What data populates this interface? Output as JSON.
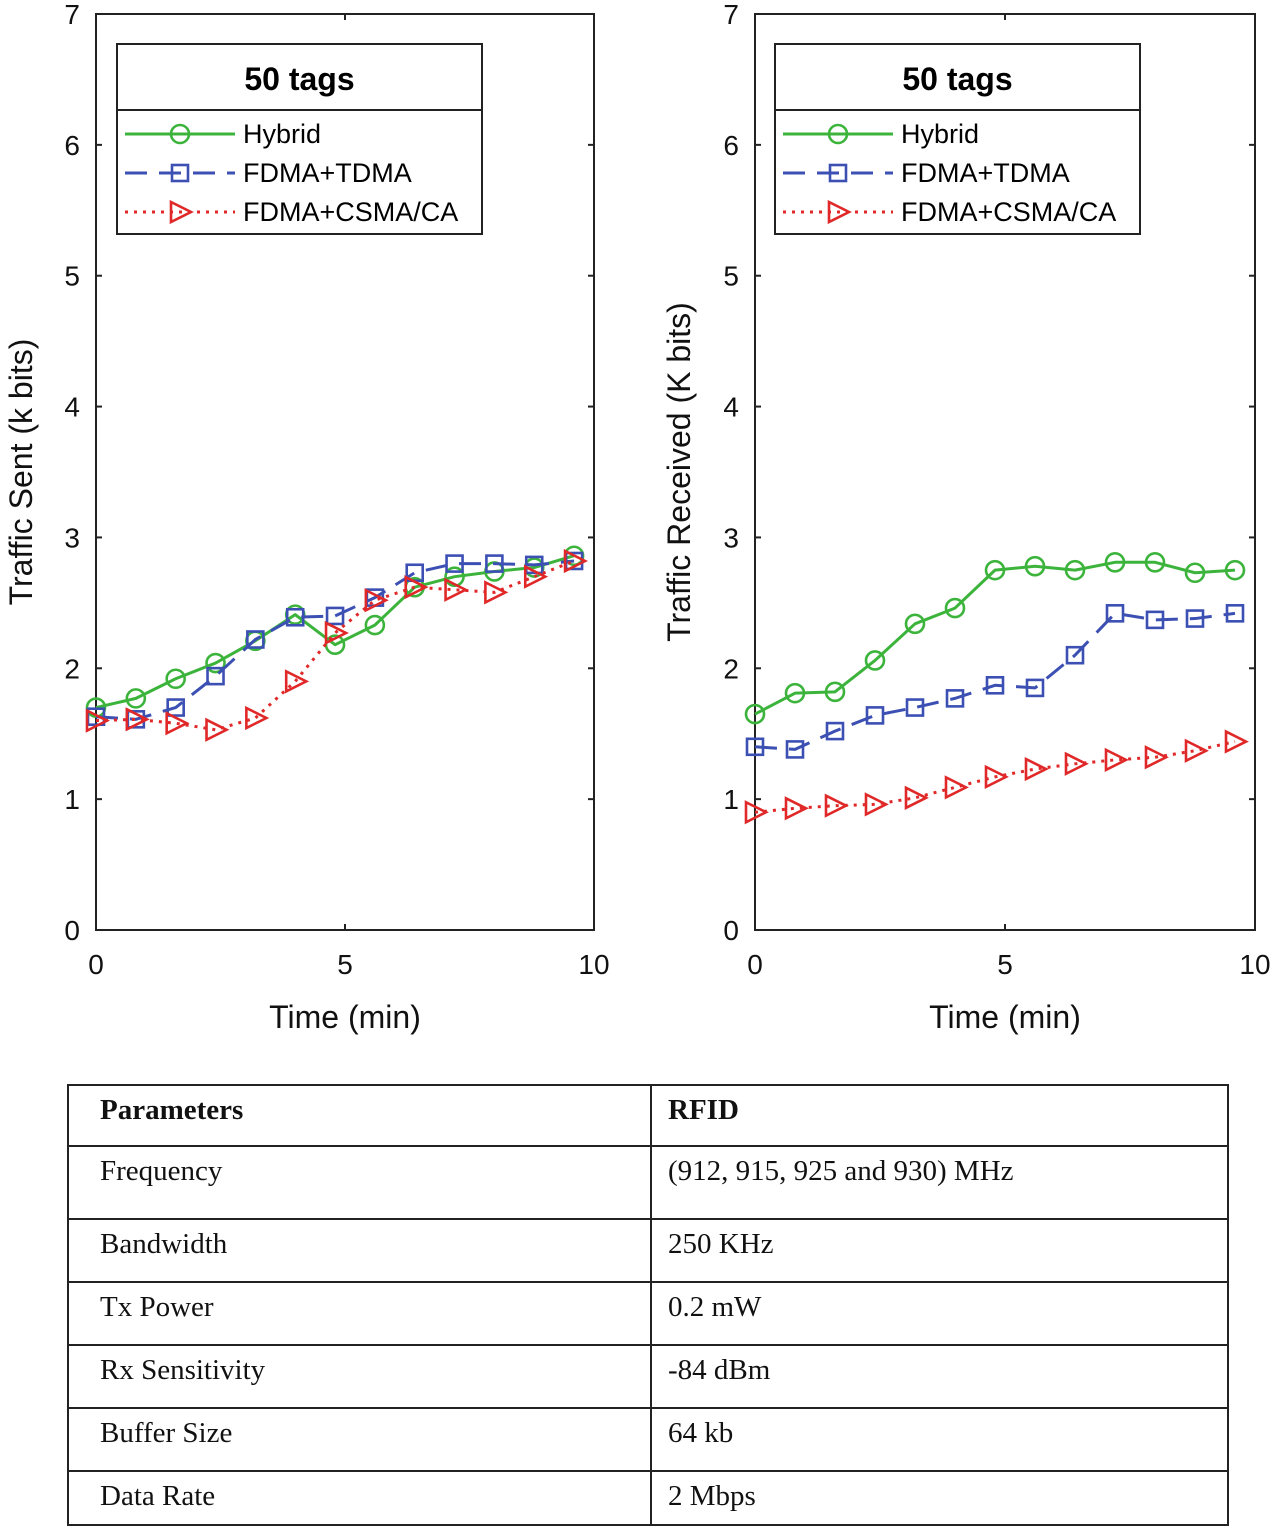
{
  "chart_data": [
    {
      "type": "line",
      "title": "50 tags",
      "xlabel": "Time (min)",
      "ylabel": "Traffic Sent (k bits)",
      "xlim": [
        0,
        10
      ],
      "ylim": [
        0,
        7
      ],
      "xticks": [
        "0",
        "5",
        "10"
      ],
      "yticks": [
        "0",
        "1",
        "2",
        "3",
        "4",
        "5",
        "6",
        "7"
      ],
      "legend_position": "top",
      "series": [
        {
          "name": "Hybrid",
          "color": "#3cb43c",
          "marker": "circle",
          "style": "solid",
          "x": [
            0,
            0.8,
            1.6,
            2.4,
            3.2,
            4.0,
            4.8,
            5.6,
            6.4,
            7.2,
            8.0,
            8.8,
            9.6
          ],
          "y": [
            1.7,
            1.77,
            1.92,
            2.04,
            2.21,
            2.41,
            2.18,
            2.33,
            2.62,
            2.7,
            2.74,
            2.77,
            2.86
          ]
        },
        {
          "name": "FDMA+TDMA",
          "color": "#3c50b4",
          "marker": "square",
          "style": "dashed",
          "x": [
            0,
            0.8,
            1.6,
            2.4,
            3.2,
            4.0,
            4.8,
            5.6,
            6.4,
            7.2,
            8.0,
            8.8,
            9.6
          ],
          "y": [
            1.63,
            1.61,
            1.7,
            1.94,
            2.22,
            2.39,
            2.4,
            2.54,
            2.73,
            2.8,
            2.8,
            2.79,
            2.82
          ]
        },
        {
          "name": "FDMA+CSMA/CA",
          "color": "#e02828",
          "marker": "triangle-right",
          "style": "dotted",
          "x": [
            0,
            0.8,
            1.6,
            2.4,
            3.2,
            4.0,
            4.8,
            5.6,
            6.4,
            7.2,
            8.0,
            8.8,
            9.6
          ],
          "y": [
            1.6,
            1.61,
            1.58,
            1.53,
            1.62,
            1.9,
            2.27,
            2.52,
            2.62,
            2.6,
            2.58,
            2.7,
            2.82
          ]
        }
      ]
    },
    {
      "type": "line",
      "title": "50 tags",
      "xlabel": "Time (min)",
      "ylabel": "Traffic Received (K bits)",
      "xlim": [
        0,
        10
      ],
      "ylim": [
        0,
        7
      ],
      "xticks": [
        "0",
        "5",
        "10"
      ],
      "yticks": [
        "0",
        "1",
        "2",
        "3",
        "4",
        "5",
        "6",
        "7"
      ],
      "legend_position": "top",
      "series": [
        {
          "name": "Hybrid",
          "color": "#3cb43c",
          "marker": "circle",
          "style": "solid",
          "x": [
            0,
            0.8,
            1.6,
            2.4,
            3.2,
            4.0,
            4.8,
            5.6,
            6.4,
            7.2,
            8.0,
            8.8,
            9.6
          ],
          "y": [
            1.65,
            1.81,
            1.82,
            2.06,
            2.34,
            2.46,
            2.75,
            2.78,
            2.75,
            2.81,
            2.81,
            2.73,
            2.75
          ]
        },
        {
          "name": "FDMA+TDMA",
          "color": "#3c50b4",
          "marker": "square",
          "style": "dashed",
          "x": [
            0,
            0.8,
            1.6,
            2.4,
            3.2,
            4.0,
            4.8,
            5.6,
            6.4,
            7.2,
            8.0,
            8.8,
            9.6
          ],
          "y": [
            1.4,
            1.38,
            1.52,
            1.64,
            1.7,
            1.77,
            1.87,
            1.85,
            2.1,
            2.42,
            2.37,
            2.38,
            2.42
          ]
        },
        {
          "name": "FDMA+CSMA/CA",
          "color": "#e02828",
          "marker": "triangle-right",
          "style": "dotted",
          "x": [
            0,
            0.8,
            1.6,
            2.4,
            3.2,
            4.0,
            4.8,
            5.6,
            6.4,
            7.2,
            8.0,
            8.8,
            9.6
          ],
          "y": [
            0.9,
            0.93,
            0.95,
            0.96,
            1.01,
            1.09,
            1.17,
            1.23,
            1.27,
            1.3,
            1.32,
            1.37,
            1.44
          ]
        }
      ]
    }
  ],
  "table": {
    "headers": [
      "Parameters",
      "RFID"
    ],
    "rows": [
      [
        "Frequency",
        "(912, 915, 925 and 930) MHz"
      ],
      [
        "Bandwidth",
        "250 KHz"
      ],
      [
        "Tx Power",
        "0.2 mW"
      ],
      [
        "Rx Sensitivity",
        "-84 dBm"
      ],
      [
        "Buffer Size",
        "64 kb"
      ],
      [
        "Data Rate",
        "2 Mbps"
      ]
    ]
  }
}
